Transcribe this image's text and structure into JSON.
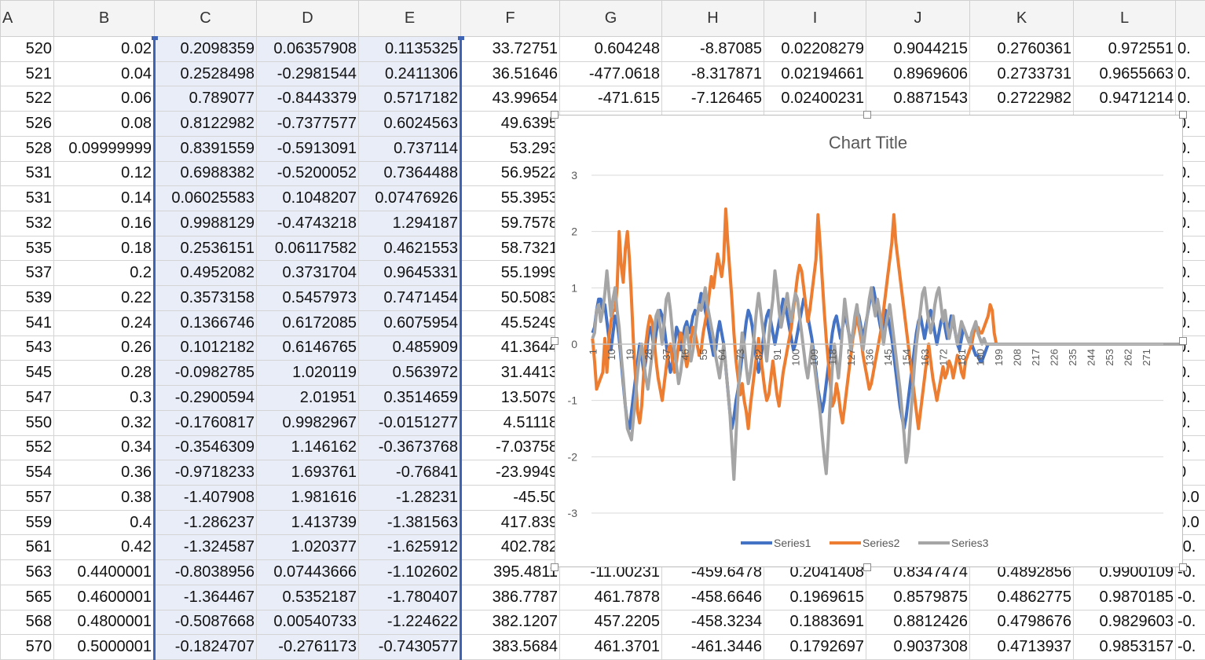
{
  "columns": [
    "A",
    "B",
    "C",
    "D",
    "E",
    "F",
    "G",
    "H",
    "I",
    "J",
    "K",
    "L",
    ""
  ],
  "rows": [
    [
      "520",
      "0.02",
      "0.2098359",
      "0.06357908",
      "0.1135325",
      "33.72751",
      "0.604248",
      "-8.87085",
      "0.02208279",
      "0.9044215",
      "0.2760361",
      "0.972551",
      "0."
    ],
    [
      "521",
      "0.04",
      "0.2528498",
      "-0.2981544",
      "0.2411306",
      "36.51646",
      "-477.0618",
      "-8.317871",
      "0.02194661",
      "0.8969606",
      "0.2733731",
      "0.9655663",
      "0."
    ],
    [
      "522",
      "0.06",
      "0.789077",
      "-0.8443379",
      "0.5717182",
      "43.99654",
      "-471.615",
      "-7.126465",
      "0.02400231",
      "0.8871543",
      "0.2722982",
      "0.9471214",
      "0."
    ],
    [
      "526",
      "0.08",
      "0.8122982",
      "-0.7377577",
      "0.6024563",
      "49.6395",
      "",
      "",
      "",
      "",
      "",
      "",
      "0."
    ],
    [
      "528",
      "0.09999999",
      "0.8391559",
      "-0.5913091",
      "0.737114",
      "53.293",
      "",
      "",
      "",
      "",
      "",
      "",
      "0."
    ],
    [
      "531",
      "0.12",
      "0.6988382",
      "-0.5200052",
      "0.7364488",
      "56.9522",
      "",
      "",
      "",
      "",
      "",
      "",
      "0."
    ],
    [
      "531",
      "0.14",
      "0.06025583",
      "0.1048207",
      "0.07476926",
      "55.3953",
      "",
      "",
      "",
      "",
      "",
      "",
      "0."
    ],
    [
      "532",
      "0.16",
      "0.9988129",
      "-0.4743218",
      "1.294187",
      "59.7578",
      "",
      "",
      "",
      "",
      "",
      "",
      "0."
    ],
    [
      "535",
      "0.18",
      "0.2536151",
      "0.06117582",
      "0.4621553",
      "58.7321",
      "",
      "",
      "",
      "",
      "",
      "",
      "0."
    ],
    [
      "537",
      "0.2",
      "0.4952082",
      "0.3731704",
      "0.9645331",
      "55.1999",
      "",
      "",
      "",
      "",
      "",
      "",
      "0."
    ],
    [
      "539",
      "0.22",
      "0.3573158",
      "0.5457973",
      "0.7471454",
      "50.5083",
      "",
      "",
      "",
      "",
      "",
      "",
      "0."
    ],
    [
      "541",
      "0.24",
      "0.1366746",
      "0.6172085",
      "0.6075954",
      "45.5249",
      "",
      "",
      "",
      "",
      "",
      "",
      "0."
    ],
    [
      "543",
      "0.26",
      "0.1012182",
      "0.6146765",
      "0.485909",
      "41.3644",
      "",
      "",
      "",
      "",
      "",
      "",
      "0."
    ],
    [
      "545",
      "0.28",
      "-0.0982785",
      "1.020119",
      "0.563972",
      "31.4413",
      "",
      "",
      "",
      "",
      "",
      "",
      "0."
    ],
    [
      "547",
      "0.3",
      "-0.2900594",
      "2.01951",
      "0.3514659",
      "13.5079",
      "",
      "",
      "",
      "",
      "",
      "",
      "0."
    ],
    [
      "550",
      "0.32",
      "-0.1760817",
      "0.9982967",
      "-0.0151277",
      "4.51118",
      "",
      "",
      "",
      "",
      "",
      "",
      "0."
    ],
    [
      "552",
      "0.34",
      "-0.3546309",
      "1.146162",
      "-0.3673768",
      "-7.03758",
      "",
      "",
      "",
      "",
      "",
      "",
      "0."
    ],
    [
      "554",
      "0.36",
      "-0.9718233",
      "1.693761",
      "-0.76841",
      "-23.9949",
      "",
      "",
      "",
      "",
      "",
      "",
      "0"
    ],
    [
      "557",
      "0.38",
      "-1.407908",
      "1.981616",
      "-1.28231",
      "-45.50",
      "",
      "",
      "",
      "",
      "",
      "",
      "0.0"
    ],
    [
      "559",
      "0.4",
      "-1.286237",
      "1.413739",
      "-1.381563",
      "417.839",
      "",
      "",
      "",
      "",
      "",
      "",
      "0.0"
    ],
    [
      "561",
      "0.42",
      "-1.324587",
      "1.020377",
      "-1.625912",
      "402.782",
      "",
      "",
      "",
      "",
      "",
      "",
      "-0."
    ],
    [
      "563",
      "0.4400001",
      "-0.8038956",
      "0.07443666",
      "-1.102602",
      "395.4811",
      "-11.00231",
      "-459.6478",
      "0.2041408",
      "0.8347474",
      "0.4892856",
      "0.9900109",
      "-0."
    ],
    [
      "565",
      "0.4600001",
      "-1.364467",
      "0.5352187",
      "-1.780407",
      "386.7787",
      "461.7878",
      "-458.6646",
      "0.1969615",
      "0.8579875",
      "0.4862775",
      "0.9870185",
      "-0."
    ],
    [
      "568",
      "0.4800001",
      "-0.5087668",
      "0.00540733",
      "-1.224622",
      "382.1207",
      "457.2205",
      "-458.3234",
      "0.1883691",
      "0.8812426",
      "0.4798676",
      "0.9829603",
      "-0."
    ],
    [
      "570",
      "0.5000001",
      "-0.1824707",
      "-0.2761173",
      "-0.7430577",
      "383.5684",
      "461.3701",
      "-461.3446",
      "0.1792697",
      "0.9037308",
      "0.4713937",
      "0.9853157",
      "-0."
    ]
  ],
  "chart_data": {
    "type": "line",
    "title": "Chart Title",
    "ylim": [
      -3,
      3
    ],
    "yticks": [
      "3",
      "2",
      "1",
      "0",
      "-1",
      "-2",
      "-3"
    ],
    "x_tick_labels": [
      "1",
      "10",
      "19",
      "28",
      "37",
      "46",
      "55",
      "64",
      "73",
      "82",
      "91",
      "100",
      "109",
      "118",
      "127",
      "136",
      "145",
      "154",
      "163",
      "172",
      "181",
      "190",
      "199",
      "208",
      "217",
      "226",
      "235",
      "244",
      "253",
      "262",
      "271"
    ],
    "n_points": 279,
    "legend_position": "bottom",
    "series": [
      {
        "name": "Series1",
        "color": "#4472c4",
        "values": [
          0.2,
          0.3,
          0.6,
          0.8,
          0.8,
          0.6,
          0.7,
          0.4,
          0.1,
          -0.1,
          0.2,
          0.5,
          0.4,
          0.1,
          -0.3,
          -0.7,
          -1.1,
          -1.4,
          -1.5,
          -1.2,
          -0.9,
          -0.6,
          -0.3,
          0.0,
          -0.2,
          -0.5,
          -0.3,
          0.1,
          0.3,
          0.2,
          -0.1,
          0.2,
          0.4,
          0.6,
          0.5,
          0.3,
          0.0,
          -0.3,
          -0.5,
          -0.3,
          0.0,
          0.3,
          0.2,
          -0.1,
          0.1,
          0.3,
          0.4,
          0.2,
          0.3,
          0.5,
          0.6,
          0.5,
          0.7,
          0.9,
          0.8,
          0.6,
          0.4,
          0.2,
          0.0,
          -0.2,
          -0.1,
          0.2,
          0.4,
          0.2,
          0.0,
          -0.4,
          -0.8,
          -1.2,
          -1.5,
          -1.3,
          -1.0,
          -0.8,
          -0.5,
          -0.2,
          0.1,
          0.4,
          0.6,
          0.5,
          0.3,
          0.0,
          -0.3,
          -0.5,
          -0.3,
          0.0,
          0.3,
          0.5,
          0.6,
          0.4,
          0.2,
          0.0,
          0.2,
          0.4,
          0.6,
          0.8,
          0.7,
          0.5,
          0.3,
          0.1,
          -0.1,
          0.0,
          0.2,
          0.4,
          0.6,
          0.8,
          0.7,
          0.5,
          0.3,
          0.1,
          -0.2,
          -0.5,
          -0.8,
          -1.0,
          -1.2,
          -1.0,
          -0.7,
          -0.4,
          -0.1,
          0.2,
          0.4,
          0.5,
          0.3,
          0.1,
          0.3,
          0.5,
          0.4,
          0.2,
          0.0,
          0.2,
          0.4,
          0.6,
          0.5,
          0.3,
          0.1,
          0.3,
          0.5,
          0.7,
          0.9,
          1.0,
          0.8,
          0.6,
          0.4,
          0.2,
          0.4,
          0.6,
          0.5,
          0.3,
          0.1,
          -0.2,
          -0.5,
          -0.8,
          -1.1,
          -1.3,
          -1.5,
          -1.3,
          -1.0,
          -0.7,
          -0.4,
          -0.1,
          0.2,
          0.4,
          0.5,
          0.3,
          0.1,
          0.3,
          0.5,
          0.6,
          0.4,
          0.2,
          0.0,
          0.2,
          0.4,
          0.5,
          0.3,
          0.1,
          0.3,
          0.5,
          0.4,
          0.2,
          0.0,
          -0.1,
          0.1,
          0.3,
          0.2,
          0.1,
          0.1,
          0.0,
          -0.1,
          -0.2,
          -0.2,
          -0.3,
          -0.3,
          -0.2,
          -0.1,
          0.0,
          0.0,
          0.0,
          0.0,
          0.0,
          0.0,
          0.0,
          0.0,
          0.0,
          0.0,
          0.0,
          0.0,
          0.0,
          0.0,
          0.0,
          0.0,
          0.0,
          0.0,
          0.0,
          0.0,
          0.0,
          0.0,
          0.0,
          0.0,
          0.0,
          0.0,
          0.0,
          0.0,
          0.0,
          0.0,
          0.0,
          0.0,
          0.0,
          0.0,
          0.0,
          0.0,
          0.0,
          0.0,
          0.0,
          0.0,
          0.0,
          0.0,
          0.0,
          0.0,
          0.0,
          0.0,
          0.0,
          0.0,
          0.0,
          0.0,
          0.0,
          0.0,
          0.0,
          0.0,
          0.0,
          0.0,
          0.0,
          0.0,
          0.0,
          0.0,
          0.0,
          0.0,
          0.0,
          0.0,
          0.0,
          0.0,
          0.0,
          0.0,
          0.0,
          0.0,
          0.0,
          0.0,
          0.0,
          0.0,
          0.0,
          0.0,
          0.0,
          0.0,
          0.0,
          0.0,
          0.0
        ]
      },
      {
        "name": "Series2",
        "color": "#ed7d31",
        "values": [
          0.1,
          -0.3,
          -0.8,
          -0.7,
          -0.6,
          -0.5,
          0.1,
          -0.5,
          0.1,
          0.4,
          0.6,
          0.6,
          1.0,
          2.0,
          1.4,
          1.1,
          1.7,
          2.0,
          1.5,
          0.8,
          0.0,
          -0.6,
          -1.2,
          -1.4,
          -1.1,
          -0.5,
          0.0,
          0.3,
          0.5,
          0.4,
          0.1,
          -0.3,
          -0.6,
          -0.8,
          -1.0,
          -0.7,
          -0.4,
          -0.1,
          0.0,
          -0.3,
          -0.5,
          -0.3,
          0.0,
          0.2,
          0.1,
          -0.2,
          -0.4,
          -0.2,
          0.1,
          0.3,
          0.2,
          0.0,
          -0.2,
          -0.1,
          0.2,
          0.4,
          0.6,
          0.9,
          1.2,
          1.0,
          1.3,
          1.6,
          1.4,
          1.2,
          1.5,
          2.4,
          1.8,
          1.3,
          0.8,
          0.2,
          -0.3,
          -0.6,
          -0.9,
          -0.7,
          -1.0,
          -1.2,
          -1.5,
          -1.1,
          -0.8,
          -0.5,
          -0.2,
          0.1,
          -0.2,
          -0.5,
          -0.8,
          -1.0,
          -0.9,
          -0.6,
          -0.3,
          -0.6,
          -0.9,
          -1.1,
          -0.8,
          -0.5,
          -0.3,
          -0.1,
          0.1,
          0.3,
          0.6,
          0.9,
          1.2,
          1.4,
          1.3,
          1.0,
          0.7,
          0.4,
          0.6,
          0.9,
          1.2,
          1.5,
          2.3,
          1.8,
          1.2,
          0.6,
          0.1,
          -0.3,
          -0.7,
          -1.1,
          -1.0,
          -0.7,
          -0.9,
          -1.2,
          -1.4,
          -1.1,
          -0.8,
          -0.5,
          -0.2,
          0.1,
          0.3,
          0.5,
          0.3,
          0.1,
          -0.2,
          -0.4,
          -0.6,
          -0.8,
          -0.7,
          -0.5,
          -0.3,
          -0.1,
          0.1,
          0.3,
          0.6,
          0.9,
          1.2,
          1.5,
          1.8,
          2.3,
          1.8,
          1.5,
          1.2,
          0.9,
          0.6,
          0.3,
          0.0,
          -0.3,
          -0.6,
          -0.9,
          -1.2,
          -1.5,
          -1.2,
          -0.9,
          -0.6,
          -0.3,
          0.0,
          -0.3,
          -0.6,
          -0.8,
          -1.0,
          -0.8,
          -0.6,
          -0.4,
          -0.6,
          -0.5,
          -0.3,
          -0.4,
          -0.6,
          -0.4,
          -0.2,
          -0.3,
          -0.5,
          -0.6,
          -0.3,
          -0.2,
          -0.1,
          0.0,
          0.2,
          0.3,
          0.3,
          0.2,
          0.2,
          0.3,
          0.4,
          0.5,
          0.7,
          0.6,
          0.2,
          0.0,
          0.0,
          0.0,
          0.0,
          0.0,
          0.0,
          0.0,
          0.0,
          0.0,
          0.0,
          0.0,
          0.0,
          0.0,
          0.0,
          0.0,
          0.0,
          0.0,
          0.0,
          0.0,
          0.0,
          0.0,
          0.0,
          0.0,
          0.0,
          0.0,
          0.0,
          0.0,
          0.0,
          0.0,
          0.0,
          0.0,
          0.0,
          0.0,
          0.0,
          0.0,
          0.0,
          0.0,
          0.0,
          0.0,
          0.0,
          0.0,
          0.0,
          0.0,
          0.0,
          0.0,
          0.0,
          0.0,
          0.0,
          0.0,
          0.0,
          0.0,
          0.0,
          0.0,
          0.0,
          0.0,
          0.0,
          0.0,
          0.0,
          0.0,
          0.0,
          0.0,
          0.0,
          0.0,
          0.0,
          0.0,
          0.0,
          0.0,
          0.0,
          0.0,
          0.0,
          0.0,
          0.0,
          0.0,
          0.0,
          0.0,
          0.0,
          0.0,
          0.0,
          0.0,
          0.0,
          0.0,
          0.0,
          0.0,
          0.0,
          0.0,
          0.0,
          0.0,
          0.0,
          0.0,
          0.0,
          0.0
        ]
      },
      {
        "name": "Series3",
        "color": "#a5a5a5",
        "values": [
          0.1,
          0.2,
          0.6,
          0.7,
          0.4,
          0.6,
          0.9,
          1.3,
          0.9,
          0.5,
          0.8,
          1.0,
          0.6,
          0.3,
          -0.2,
          -0.6,
          -1.1,
          -1.5,
          -1.6,
          -1.7,
          -1.3,
          -0.9,
          -0.5,
          -0.2,
          0.0,
          -0.3,
          -0.6,
          -0.8,
          -0.5,
          -0.2,
          0.2,
          0.5,
          0.6,
          0.3,
          0.0,
          0.4,
          0.8,
          0.9,
          0.6,
          0.2,
          -0.1,
          -0.4,
          -0.7,
          -0.5,
          -0.2,
          0.1,
          0.3,
          0.0,
          -0.3,
          -0.1,
          0.2,
          0.5,
          0.7,
          0.6,
          0.8,
          1.0,
          0.7,
          0.5,
          0.3,
          0.1,
          -0.2,
          -0.4,
          -0.6,
          -0.3,
          0.0,
          -0.4,
          -0.8,
          -1.2,
          -1.8,
          -2.4,
          -1.6,
          -0.9,
          -0.3,
          0.2,
          0.0,
          -0.4,
          -0.7,
          -0.5,
          -0.2,
          0.2,
          0.6,
          0.9,
          0.6,
          0.3,
          0.0,
          -0.3,
          0.1,
          0.5,
          0.8,
          1.3,
          1.0,
          0.6,
          0.3,
          0.5,
          0.7,
          0.9,
          0.6,
          0.4,
          0.7,
          0.9,
          0.8,
          0.5,
          0.2,
          -0.1,
          -0.4,
          -0.6,
          -0.3,
          0.0,
          -0.3,
          -0.6,
          -0.9,
          -1.2,
          -1.6,
          -2.0,
          -2.3,
          -1.7,
          -1.0,
          -0.4,
          0.0,
          -0.3,
          -0.6,
          -0.2,
          0.3,
          0.8,
          0.5,
          0.2,
          -0.1,
          0.2,
          0.5,
          0.7,
          0.4,
          0.2,
          -0.1,
          0.2,
          0.5,
          0.8,
          1.0,
          0.7,
          0.5,
          0.8,
          0.6,
          0.3,
          0.0,
          0.3,
          0.5,
          0.7,
          0.4,
          0.1,
          -0.2,
          -0.5,
          -0.8,
          -1.2,
          -1.6,
          -2.1,
          -1.9,
          -1.4,
          -0.9,
          -0.4,
          0.0,
          0.3,
          0.6,
          0.9,
          1.0,
          0.7,
          0.4,
          0.2,
          0.4,
          0.7,
          0.9,
          1.0,
          0.7,
          0.4,
          0.6,
          0.3,
          0.1,
          0.3,
          0.5,
          0.2,
          0.0,
          0.2,
          0.4,
          0.3,
          0.2,
          0.1,
          0.0,
          0.2,
          0.3,
          0.4,
          0.2,
          0.1,
          0.0,
          0.1,
          0.0,
          0.0,
          0.0,
          0.0,
          0.0,
          0.0,
          0.0,
          0.0,
          0.0,
          0.0,
          0.0,
          0.0,
          0.0,
          0.0,
          0.0,
          0.0,
          0.0,
          0.0,
          0.0,
          0.0,
          0.0,
          0.0,
          0.0,
          0.0,
          0.0,
          0.0,
          0.0,
          0.0,
          0.0,
          0.0,
          0.0,
          0.0,
          0.0,
          0.0,
          0.0,
          0.0,
          0.0,
          0.0,
          0.0,
          0.0,
          0.0,
          0.0,
          0.0,
          0.0,
          0.0,
          0.0,
          0.0,
          0.0,
          0.0,
          0.0,
          0.0,
          0.0,
          0.0,
          0.0,
          0.0,
          0.0,
          0.0,
          0.0,
          0.0,
          0.0,
          0.0,
          0.0,
          0.0,
          0.0,
          0.0,
          0.0,
          0.0,
          0.0,
          0.0,
          0.0,
          0.0,
          0.0,
          0.0,
          0.0,
          0.0,
          0.0,
          0.0,
          0.0,
          0.0,
          0.0,
          0.0,
          0.0,
          0.0,
          0.0,
          0.0,
          0.0,
          0.0,
          0.0,
          0.0,
          0.0,
          0.0,
          0.0,
          0.0,
          0.0,
          0.0,
          0.0,
          0.0,
          0.0,
          0.0,
          0.0,
          0.0,
          0.0
        ]
      }
    ]
  }
}
